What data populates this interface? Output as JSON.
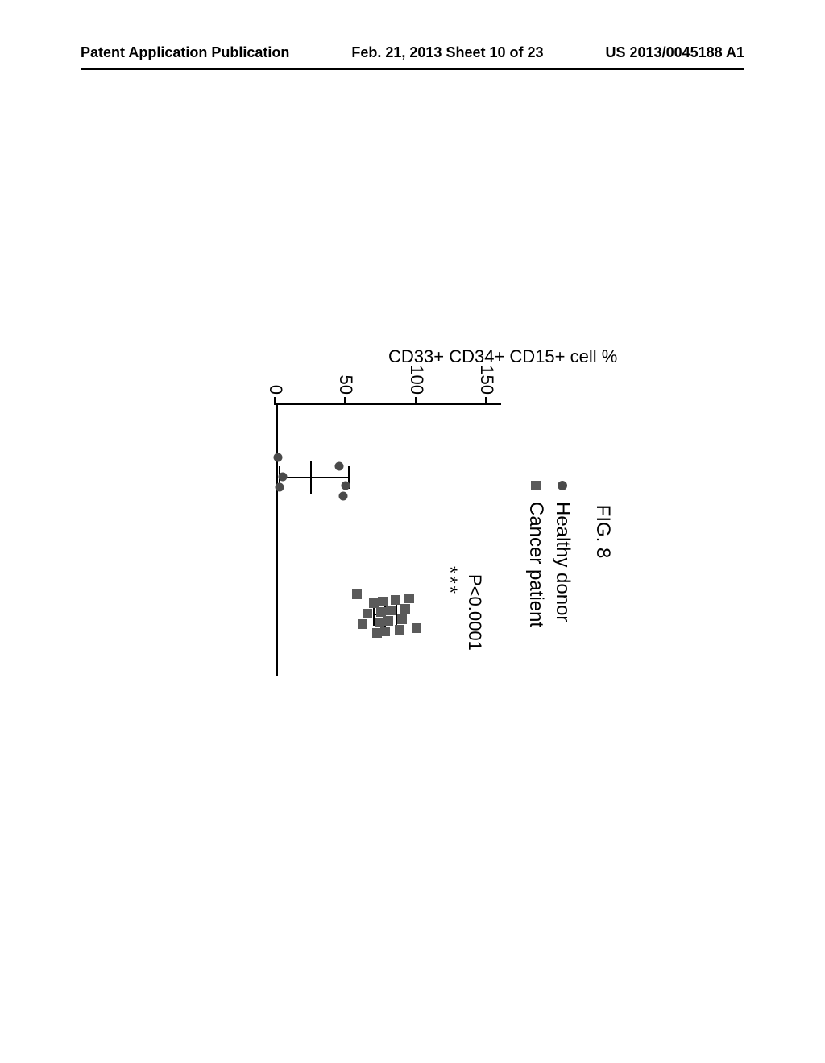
{
  "header": {
    "left": "Patent Application Publication",
    "center": "Feb. 21, 2013  Sheet 10 of 23",
    "right": "US 2013/0045188 A1"
  },
  "figure": {
    "title": "FIG. 8",
    "type": "scatter",
    "y_axis_label": "CD33+ CD34+ CD15+ cell %",
    "legend": [
      {
        "marker": "circle",
        "label": "Healthy donor",
        "color": "#4a4a4a"
      },
      {
        "marker": "square",
        "label": "Cancer patient",
        "color": "#5a5a5a"
      }
    ],
    "ylim": [
      0,
      160
    ],
    "yticks": [
      0,
      50,
      100,
      150
    ],
    "background_color": "#ffffff",
    "axis_color": "#000000",
    "p_value_text": "P<0.0001",
    "significance": "***",
    "groups": [
      {
        "name": "Healthy donor",
        "x_position": 90,
        "marker": "circle",
        "color": "#4a4a4a",
        "points": [
          2,
          3,
          5,
          45,
          48,
          50
        ],
        "mean": 25,
        "error_low": 3,
        "error_high": 52
      },
      {
        "name": "Cancer patient",
        "x_position": 260,
        "marker": "square",
        "color": "#5a5a5a",
        "points": [
          58,
          62,
          65,
          70,
          72,
          74,
          75,
          76,
          78,
          80,
          82,
          85,
          88,
          90,
          92,
          95,
          100
        ],
        "mean": 78,
        "error_low": 70,
        "error_high": 86
      }
    ]
  }
}
